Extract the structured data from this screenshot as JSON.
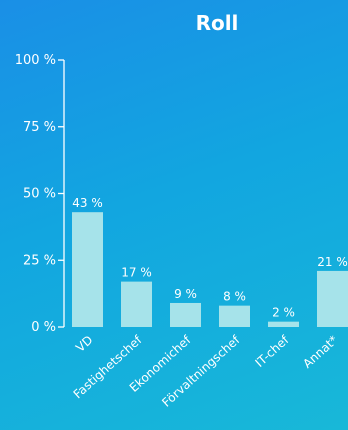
{
  "chart_data": {
    "type": "bar",
    "title": "Roll",
    "categories": [
      "VD",
      "Fastighetschef",
      "Ekonomichef",
      "Förvaltningschef",
      "IT-chef",
      "Annat*"
    ],
    "values": [
      43,
      17,
      9,
      8,
      2,
      21
    ],
    "value_labels": [
      "43 %",
      "17 %",
      "9 %",
      "8 %",
      "2 %",
      "21 %"
    ],
    "yticks": [
      0,
      25,
      50,
      75,
      100
    ],
    "ytick_labels": [
      "0 %",
      "25 %",
      "50 %",
      "75 %",
      "100 %"
    ],
    "ylim": [
      0,
      100
    ],
    "xlabel": "",
    "ylabel": "",
    "grid": false,
    "bar_color": "#a6e3ea",
    "text_color": "#ffffff"
  }
}
